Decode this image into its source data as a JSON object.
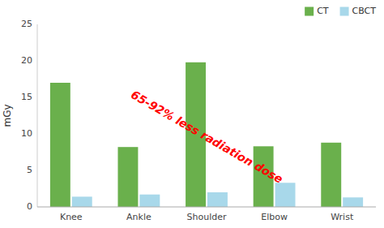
{
  "chart_data": {
    "type": "bar",
    "categories": [
      "Knee",
      "Ankle",
      "Shoulder",
      "Elbow",
      "Wrist"
    ],
    "series": [
      {
        "name": "CT",
        "color": "#6ab04c",
        "values": [
          17,
          8.2,
          19.8,
          8.3,
          8.8
        ]
      },
      {
        "name": "CBCT",
        "color": "#a8d8ea",
        "values": [
          1.4,
          1.7,
          2.0,
          3.3,
          1.3
        ]
      }
    ],
    "ylabel": "mGy",
    "ylim": [
      0,
      25
    ],
    "yticks": [
      0,
      5,
      10,
      15,
      20,
      25
    ],
    "grid": false,
    "legend": "upper right",
    "annotations": [
      {
        "text": "65-92% less radiation dose",
        "color": "red"
      }
    ]
  }
}
